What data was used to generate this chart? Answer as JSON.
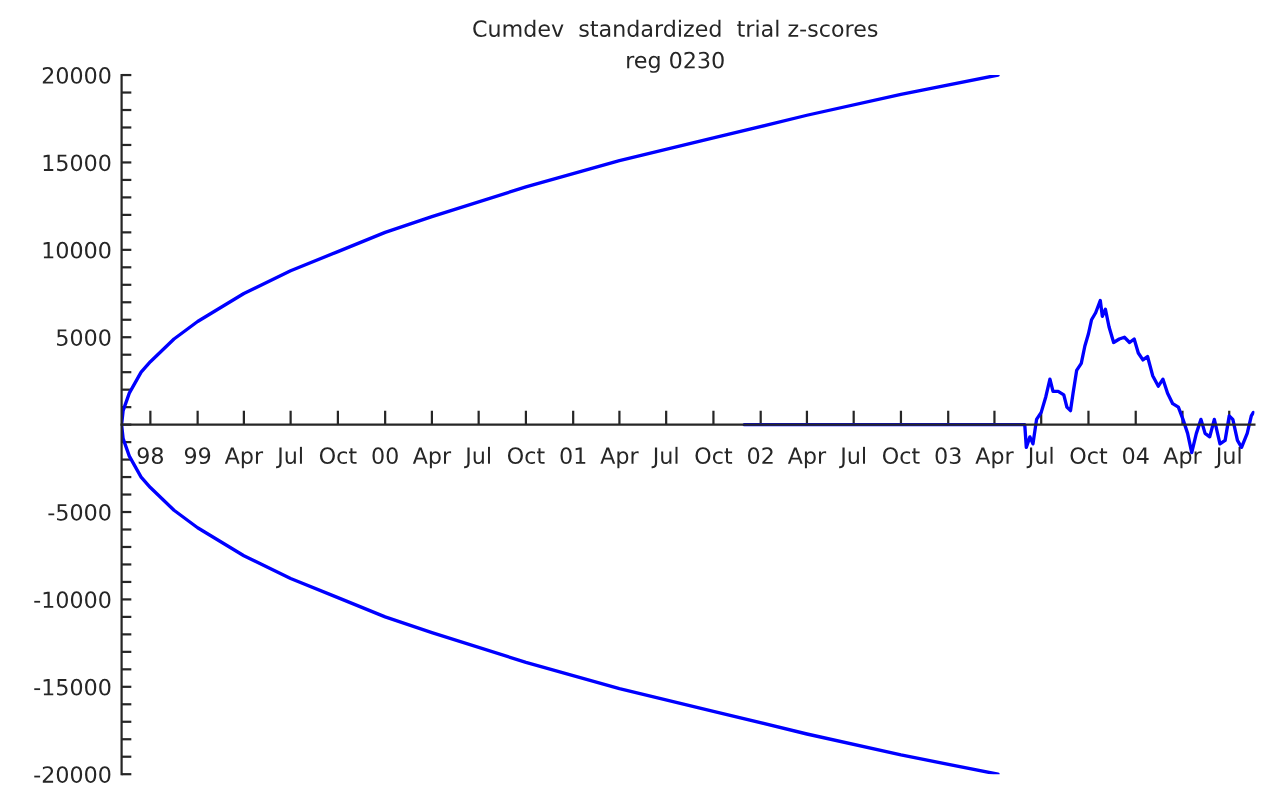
{
  "chart_data": {
    "type": "line",
    "title": "Cumdev  standardized  trial z-scores",
    "subtitle": "reg 0230",
    "xlim": [
      "1998-08-06",
      "2004-08-19"
    ],
    "ylim": [
      -20000,
      20000
    ],
    "xticks": [
      {
        "value": "1998-10-01",
        "label": "98"
      },
      {
        "value": "1999-01-01",
        "label": "99"
      },
      {
        "value": "1999-04-01",
        "label": "Apr"
      },
      {
        "value": "1999-07-01",
        "label": "Jul"
      },
      {
        "value": "1999-10-01",
        "label": "Oct"
      },
      {
        "value": "2000-01-01",
        "label": "00"
      },
      {
        "value": "2000-04-01",
        "label": "Apr"
      },
      {
        "value": "2000-07-01",
        "label": "Jul"
      },
      {
        "value": "2000-10-01",
        "label": "Oct"
      },
      {
        "value": "2001-01-01",
        "label": "01"
      },
      {
        "value": "2001-04-01",
        "label": "Apr"
      },
      {
        "value": "2001-07-01",
        "label": "Jul"
      },
      {
        "value": "2001-10-01",
        "label": "Oct"
      },
      {
        "value": "2002-01-01",
        "label": "02"
      },
      {
        "value": "2002-04-01",
        "label": "Apr"
      },
      {
        "value": "2002-07-01",
        "label": "Jul"
      },
      {
        "value": "2002-10-01",
        "label": "Oct"
      },
      {
        "value": "2003-01-01",
        "label": "03"
      },
      {
        "value": "2003-04-01",
        "label": "Apr"
      },
      {
        "value": "2003-07-01",
        "label": "Jul"
      },
      {
        "value": "2003-10-01",
        "label": "Oct"
      },
      {
        "value": "2004-01-01",
        "label": "04"
      },
      {
        "value": "2004-04-01",
        "label": "Apr"
      },
      {
        "value": "2004-07-01",
        "label": "Jul"
      }
    ],
    "yticks": [
      -20000,
      {
        "value": -19000,
        "label": null
      },
      {
        "value": -18000,
        "label": null
      },
      {
        "value": -17000,
        "label": null
      },
      {
        "value": -16000,
        "label": null
      },
      -15000,
      {
        "value": -14000,
        "label": null
      },
      {
        "value": -13000,
        "label": null
      },
      {
        "value": -12000,
        "label": null
      },
      {
        "value": -11000,
        "label": null
      },
      -10000,
      {
        "value": -9000,
        "label": null
      },
      {
        "value": -8000,
        "label": null
      },
      {
        "value": -7000,
        "label": null
      },
      {
        "value": -6000,
        "label": null
      },
      -5000,
      {
        "value": -4000,
        "label": null
      },
      {
        "value": -3000,
        "label": null
      },
      {
        "value": -2000,
        "label": null
      },
      {
        "value": -1000,
        "label": null
      },
      {
        "value": 0,
        "label": null
      },
      {
        "value": 1000,
        "label": null
      },
      {
        "value": 2000,
        "label": null
      },
      {
        "value": 3000,
        "label": null
      },
      {
        "value": 4000,
        "label": null
      },
      5000,
      {
        "value": 6000,
        "label": null
      },
      {
        "value": 7000,
        "label": null
      },
      {
        "value": 8000,
        "label": null
      },
      {
        "value": 9000,
        "label": null
      },
      10000,
      {
        "value": 11000,
        "label": null
      },
      {
        "value": 12000,
        "label": null
      },
      {
        "value": 13000,
        "label": null
      },
      {
        "value": 14000,
        "label": null
      },
      15000,
      {
        "value": 16000,
        "label": null
      },
      {
        "value": 17000,
        "label": null
      },
      {
        "value": 18000,
        "label": null
      },
      {
        "value": 19000,
        "label": null
      },
      20000
    ],
    "grid": false,
    "marker": "none",
    "line_style": "solid",
    "series": [
      {
        "color": "#0000ff",
        "x": [
          "2003-04-08",
          "2002-10-01",
          "2002-04-01",
          "2001-10-01",
          "2001-04-01",
          "2000-10-01",
          "2000-04-01",
          "2000-01-01",
          "1999-10-01",
          "1999-07-01",
          "1999-04-01",
          "1999-01-01",
          "1998-11-16",
          "1998-10-01",
          "1998-09-13",
          "1998-08-21",
          "1998-08-09",
          "1998-08-06",
          "1998-08-09",
          "1998-08-21",
          "1998-09-13",
          "1998-10-01",
          "1998-11-16",
          "1999-01-01",
          "1999-04-01",
          "1999-07-01",
          "1999-10-01",
          "2000-01-01",
          "2000-04-01",
          "2000-10-01",
          "2001-04-01",
          "2001-10-01",
          "2002-04-01",
          "2002-10-01",
          "2003-04-08"
        ],
        "values": [
          -20000,
          -18900,
          -17700,
          -16400,
          -15100,
          -13600,
          -11900,
          -11000,
          -9900,
          -8800,
          -7500,
          -5900,
          -4900,
          -3600,
          -3000,
          -1800,
          -800,
          0,
          800,
          1800,
          3000,
          3600,
          4900,
          5900,
          7500,
          8800,
          9900,
          11000,
          11900,
          13600,
          15100,
          16400,
          17700,
          18900,
          20000
        ]
      },
      {
        "color": "#0000ff",
        "x": [
          "2001-11-30",
          "2003-05-30",
          "2003-06-02",
          "2003-06-09",
          "2003-06-15",
          "2003-06-22",
          "2003-07-01",
          "2003-07-10",
          "2003-07-18",
          "2003-07-24",
          "2003-08-03",
          "2003-08-14",
          "2003-08-20",
          "2003-08-27",
          "2003-09-01",
          "2003-09-08",
          "2003-09-17",
          "2003-09-24",
          "2003-10-01",
          "2003-10-07",
          "2003-10-15",
          "2003-10-24",
          "2003-10-28",
          "2003-11-03",
          "2003-11-10",
          "2003-11-19",
          "2003-11-30",
          "2003-12-10",
          "2003-12-20",
          "2003-12-29",
          "2004-01-06",
          "2004-01-15",
          "2004-01-24",
          "2004-02-03",
          "2004-02-14",
          "2004-02-23",
          "2004-03-03",
          "2004-03-13",
          "2004-03-24",
          "2004-04-02",
          "2004-04-11",
          "2004-04-19",
          "2004-04-28",
          "2004-05-07",
          "2004-05-15",
          "2004-05-24",
          "2004-06-02",
          "2004-06-13",
          "2004-06-23",
          "2004-07-01",
          "2004-07-08",
          "2004-07-17",
          "2004-07-25",
          "2004-08-05",
          "2004-08-13",
          "2004-08-17"
        ],
        "values": [
          0,
          0,
          -1300,
          -700,
          -1100,
          300,
          700,
          1600,
          2600,
          1900,
          1900,
          1700,
          1000,
          800,
          1800,
          3100,
          3500,
          4500,
          5200,
          6000,
          6400,
          7100,
          6200,
          6600,
          5600,
          4700,
          4900,
          5000,
          4700,
          4900,
          4100,
          3700,
          3900,
          2800,
          2200,
          2600,
          1800,
          1200,
          1000,
          300,
          -500,
          -1600,
          -500,
          300,
          -500,
          -700,
          300,
          -1100,
          -900,
          500,
          300,
          -900,
          -1300,
          -500,
          500,
          700
        ]
      }
    ]
  }
}
